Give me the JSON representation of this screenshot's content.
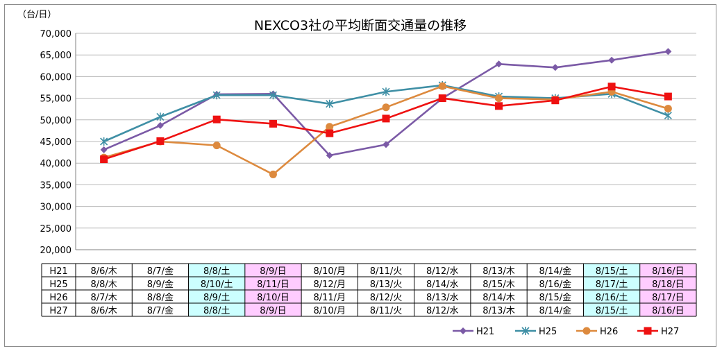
{
  "chart_data": {
    "type": "line",
    "title": "NEXCO3社の平均断面交通量の推移",
    "ylabel": "（台/日）",
    "ylim": [
      20000,
      70000
    ],
    "ytick_step": 5000,
    "yticks": [
      "20,000",
      "25,000",
      "30,000",
      "35,000",
      "40,000",
      "45,000",
      "50,000",
      "55,000",
      "60,000",
      "65,000",
      "70,000"
    ],
    "grid": true,
    "legend": "bottom-right",
    "table": {
      "rows": [
        {
          "label": "H21",
          "dates": [
            "8/6/木",
            "8/7/金",
            "8/8/土",
            "8/9/日",
            "8/10/月",
            "8/11/火",
            "8/12/水",
            "8/13/木",
            "8/14/金",
            "8/15/土",
            "8/16/日"
          ]
        },
        {
          "label": "H25",
          "dates": [
            "8/8/木",
            "8/9/金",
            "8/10/土",
            "8/11/日",
            "8/12/月",
            "8/13/火",
            "8/14/水",
            "8/15/木",
            "8/16/金",
            "8/17/土",
            "8/18/日"
          ]
        },
        {
          "label": "H26",
          "dates": [
            "8/7/木",
            "8/8/金",
            "8/9/土",
            "8/10/日",
            "8/11/月",
            "8/12/火",
            "8/13/水",
            "8/14/木",
            "8/15/金",
            "8/16/土",
            "8/17/日"
          ]
        },
        {
          "label": "H27",
          "dates": [
            "8/6/木",
            "8/7/金",
            "8/8/土",
            "8/9/日",
            "8/10/月",
            "8/11/火",
            "8/12/水",
            "8/13/木",
            "8/14/金",
            "8/15/土",
            "8/16/日"
          ]
        }
      ],
      "saturday_color": "#ccffff",
      "sunday_color": "#ffccff"
    },
    "series": [
      {
        "name": "H21",
        "color": "#7b5aa6",
        "marker": "diamond",
        "values": [
          43100,
          48700,
          55900,
          56000,
          41800,
          44300,
          55000,
          62900,
          62100,
          63800,
          65800
        ]
      },
      {
        "name": "H25",
        "color": "#3f8fa5",
        "marker": "star",
        "values": [
          45000,
          50700,
          55700,
          55700,
          53700,
          56500,
          58000,
          55400,
          55000,
          56000,
          51000
        ]
      },
      {
        "name": "H26",
        "color": "#dd8a3e",
        "marker": "circle",
        "values": [
          41300,
          45000,
          44100,
          37400,
          48400,
          52900,
          57800,
          55000,
          54700,
          56500,
          52600
        ]
      },
      {
        "name": "H27",
        "color": "#ee1111",
        "marker": "square",
        "values": [
          40900,
          45100,
          50100,
          49100,
          46900,
          50300,
          55000,
          53200,
          54500,
          57700,
          55400
        ]
      }
    ]
  }
}
